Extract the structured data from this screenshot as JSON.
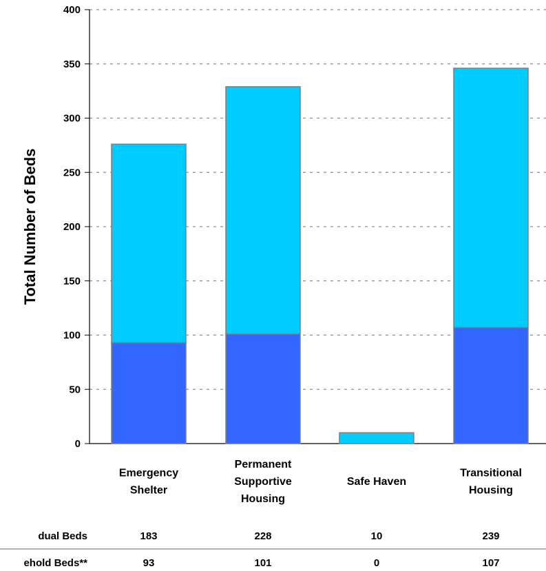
{
  "chart_data": {
    "type": "bar",
    "stacked": true,
    "ylabel": "Total Number of Beds",
    "ylim": [
      0,
      400
    ],
    "yticks": [
      0,
      50,
      100,
      150,
      200,
      250,
      300,
      350,
      400
    ],
    "grid": "horizontal dashed",
    "categories": [
      [
        "Emergency",
        "Shelter"
      ],
      [
        "Permanent",
        "Supportive",
        "Housing"
      ],
      [
        "Safe Haven"
      ],
      [
        "Transitional",
        "Housing"
      ]
    ],
    "series": [
      {
        "name": "Household Beds**",
        "values": [
          93,
          101,
          0,
          107
        ],
        "color": "#3366ff"
      },
      {
        "name": "Individual Beds",
        "values": [
          183,
          228,
          10,
          239
        ],
        "color": "#00ccff"
      }
    ],
    "table": {
      "rows": [
        {
          "label": "Individual Beds",
          "label_visible": "dual Beds",
          "values": [
            "183",
            "228",
            "10",
            "239"
          ]
        },
        {
          "label": "Household Beds**",
          "label_visible": "ehold Beds**",
          "values": [
            "93",
            "101",
            "0",
            "107"
          ]
        }
      ]
    }
  }
}
